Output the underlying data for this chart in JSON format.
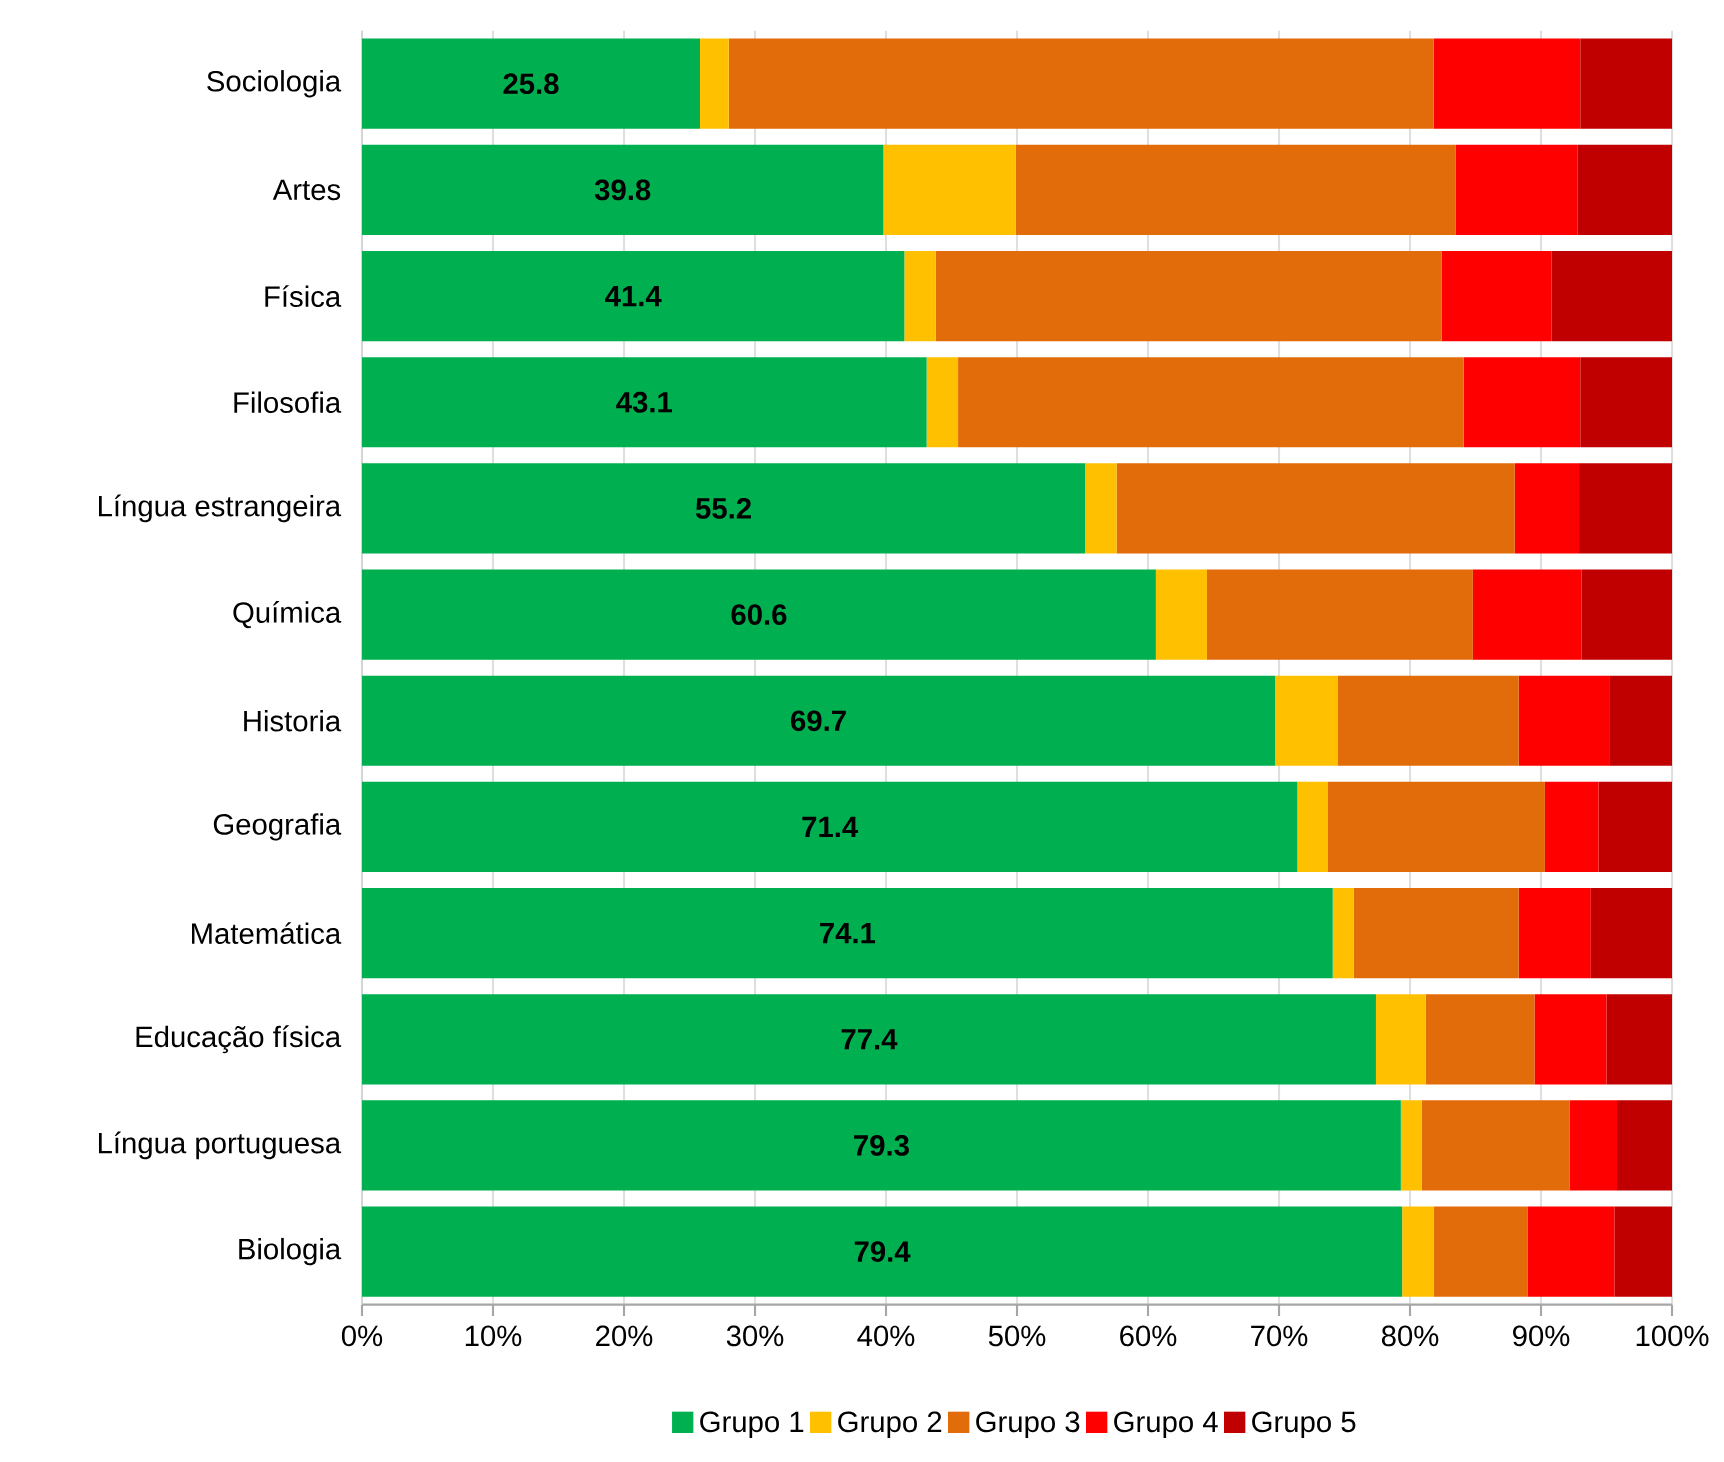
{
  "chart_data": {
    "type": "bar",
    "orientation": "horizontal",
    "stacked": true,
    "grid": "x",
    "legend": "bottom",
    "categories": [
      "Sociologia",
      "Artes",
      "Física",
      "Filosofia",
      "Língua estrangeira",
      "Química",
      "Historia",
      "Geografia",
      "Matemática",
      "Educação física",
      "Língua portuguesa",
      "Biologia"
    ],
    "xlim": [
      0,
      100
    ],
    "xticks": [
      {
        "value": 0,
        "label": "0%"
      },
      {
        "value": 10,
        "label": "10%"
      },
      {
        "value": 20,
        "label": "20%"
      },
      {
        "value": 30,
        "label": "30%"
      },
      {
        "value": 40,
        "label": "40%"
      },
      {
        "value": 50,
        "label": "50%"
      },
      {
        "value": 60,
        "label": "60%"
      },
      {
        "value": 70,
        "label": "70%"
      },
      {
        "value": 80,
        "label": "80%"
      },
      {
        "value": 90,
        "label": "90%"
      },
      {
        "value": 100,
        "label": "100%"
      }
    ],
    "series": [
      {
        "name": "Grupo 1",
        "color": "#00b050",
        "values": [
          25.8,
          39.8,
          41.4,
          43.1,
          55.2,
          60.6,
          69.7,
          71.4,
          74.1,
          77.4,
          79.3,
          79.4
        ],
        "value_labels": [
          "25.8",
          "39.8",
          "41.4",
          "43.1",
          "55.2",
          "60.6",
          "69.7",
          "71.4",
          "74.1",
          "77.4",
          "79.3",
          "79.4"
        ]
      },
      {
        "name": "Grupo 2",
        "color": "#ffc000",
        "values": [
          2.2,
          10.1,
          2.4,
          2.4,
          2.4,
          3.9,
          4.8,
          2.3,
          1.6,
          3.8,
          1.6,
          2.4
        ]
      },
      {
        "name": "Grupo 3",
        "color": "#e36c0a",
        "values": [
          53.8,
          33.6,
          38.6,
          38.6,
          30.4,
          20.3,
          13.8,
          16.6,
          12.6,
          8.3,
          11.3,
          7.2
        ]
      },
      {
        "name": "Grupo 4",
        "color": "#ff0000",
        "values": [
          11.2,
          9.3,
          8.4,
          8.9,
          4.9,
          8.3,
          6.9,
          4.1,
          5.5,
          5.5,
          3.6,
          6.6
        ]
      },
      {
        "name": "Grupo 5",
        "color": "#c00000",
        "values": [
          7.0,
          7.2,
          9.2,
          7.0,
          7.1,
          6.9,
          4.8,
          5.6,
          6.2,
          5.0,
          4.2,
          4.4
        ]
      }
    ]
  }
}
